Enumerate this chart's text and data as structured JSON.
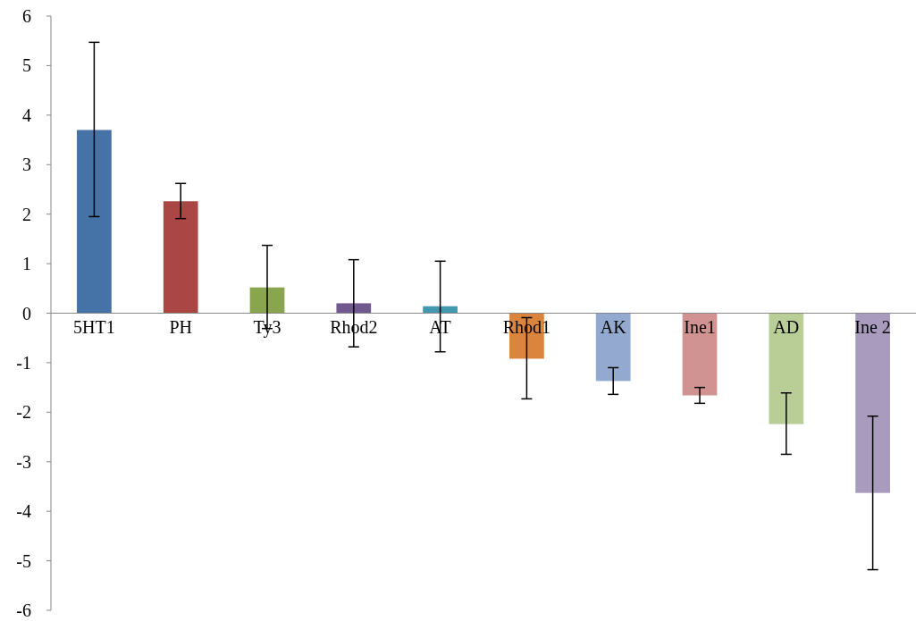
{
  "chart_data": {
    "type": "bar",
    "categories": [
      "5HT1",
      "PH",
      "Ty3",
      "Rhod2",
      "AT",
      "Rhod1",
      "AK",
      "Ine1",
      "AD",
      "Ine 2"
    ],
    "values": [
      3.7,
      2.26,
      0.52,
      0.2,
      0.14,
      -0.92,
      -1.37,
      -1.66,
      -2.24,
      -3.63
    ],
    "colors": [
      "#4573a7",
      "#aa4643",
      "#89a54e",
      "#71588f",
      "#4198af",
      "#db843d",
      "#93a9cf",
      "#d19392",
      "#b9cd96",
      "#a99bbd"
    ],
    "errors": [
      [
        1.95,
        5.47
      ],
      [
        1.91,
        2.62
      ],
      [
        -0.31,
        1.37
      ],
      [
        -0.68,
        1.08
      ],
      [
        -0.78,
        1.05
      ],
      [
        -1.73,
        -0.09
      ],
      [
        -1.64,
        -1.1
      ],
      [
        -1.82,
        -1.5
      ],
      [
        -2.85,
        -1.61
      ],
      [
        -5.18,
        -2.08
      ]
    ],
    "ylim": [
      -6,
      6
    ],
    "yticks": [
      -6,
      -5,
      -4,
      -3,
      -2,
      -1,
      0,
      1,
      2,
      3,
      4,
      5,
      6
    ],
    "grid": false
  }
}
